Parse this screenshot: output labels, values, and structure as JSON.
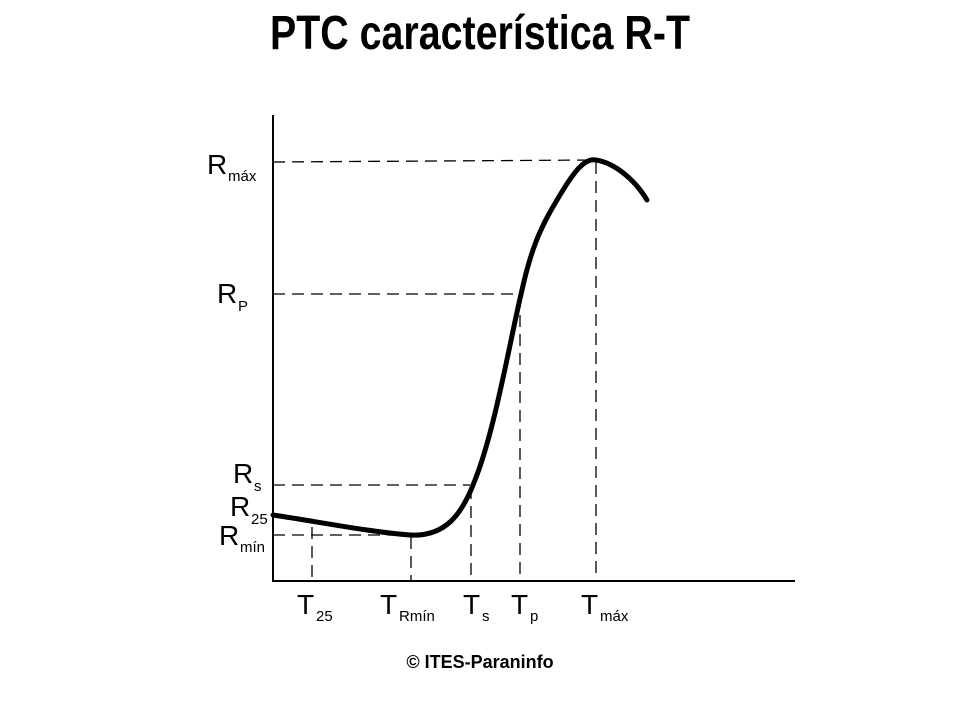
{
  "title": "PTC característica R-T",
  "copyright": "© ITES-Paraninfo",
  "y_labels": [
    {
      "main": "R",
      "sub": "máx"
    },
    {
      "main": "R",
      "sub": "P"
    },
    {
      "main": "R",
      "sub": "s"
    },
    {
      "main": "R",
      "sub": "25"
    },
    {
      "main": "R",
      "sub": "mín"
    }
  ],
  "x_labels": [
    {
      "main": "T",
      "sub": "25"
    },
    {
      "main": "T",
      "sub": "Rmín"
    },
    {
      "main": "T",
      "sub": "s"
    },
    {
      "main": "T",
      "sub": "p"
    },
    {
      "main": "T",
      "sub": "máx"
    }
  ],
  "colors": {
    "line": "#000000",
    "background": "#ffffff"
  }
}
